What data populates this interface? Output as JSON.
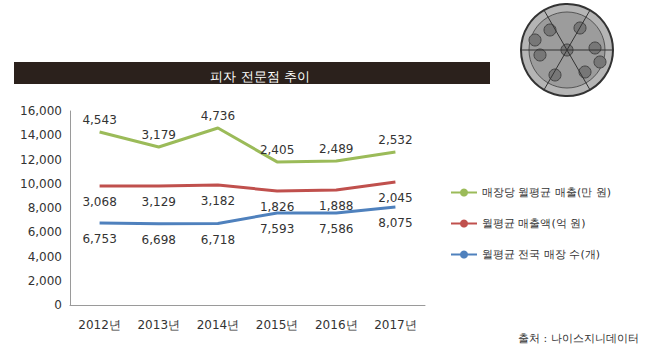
{
  "chart_data": {
    "type": "line",
    "title": "피자 전문점 추이",
    "source": "출처 : 나이스지니데이터",
    "categories": [
      "2012년",
      "2013년",
      "2014년",
      "2015년",
      "2016년",
      "2017년"
    ],
    "series": [
      {
        "name": "매장당 월평균 매출(만 원)",
        "color": "#9bbb59",
        "values": [
          14270,
          13030,
          14600,
          11800,
          11880,
          12620
        ],
        "annotations": [
          "4,543",
          "3,179",
          "4,736",
          "2,405",
          "2,489",
          "2,532"
        ]
      },
      {
        "name": "월평균 매출액(억 원)",
        "color": "#c0504d",
        "values": [
          9810,
          9810,
          9900,
          9400,
          9480,
          10140
        ],
        "annotations": [
          "3,068",
          "3,129",
          "3,182",
          "1,826",
          "1,888",
          "2,045"
        ]
      },
      {
        "name": "월평균 전국 매장 수(개)",
        "color": "#4f81bd",
        "values": [
          6753,
          6698,
          6718,
          7593,
          7586,
          8075
        ],
        "value_labels": [
          "6,753",
          "6,698",
          "6,718",
          "7,593",
          "7,586",
          "8,075"
        ]
      }
    ],
    "ylim": [
      0,
      16000
    ],
    "yticks": [
      0,
      {
        "value": 2000,
        "label": "2,000"
      },
      {
        "value": 4000,
        "label": "4,000"
      },
      {
        "value": 6000,
        "label": "6,000"
      },
      {
        "value": 8000,
        "label": "8,000"
      },
      {
        "value": 10000,
        "label": "10,000"
      },
      {
        "value": 12000,
        "label": "12,000"
      },
      {
        "value": 14000,
        "label": "14,000"
      },
      {
        "value": 16000,
        "label": "16,000"
      }
    ],
    "grid": false,
    "legend": "right",
    "data_labels": true
  }
}
